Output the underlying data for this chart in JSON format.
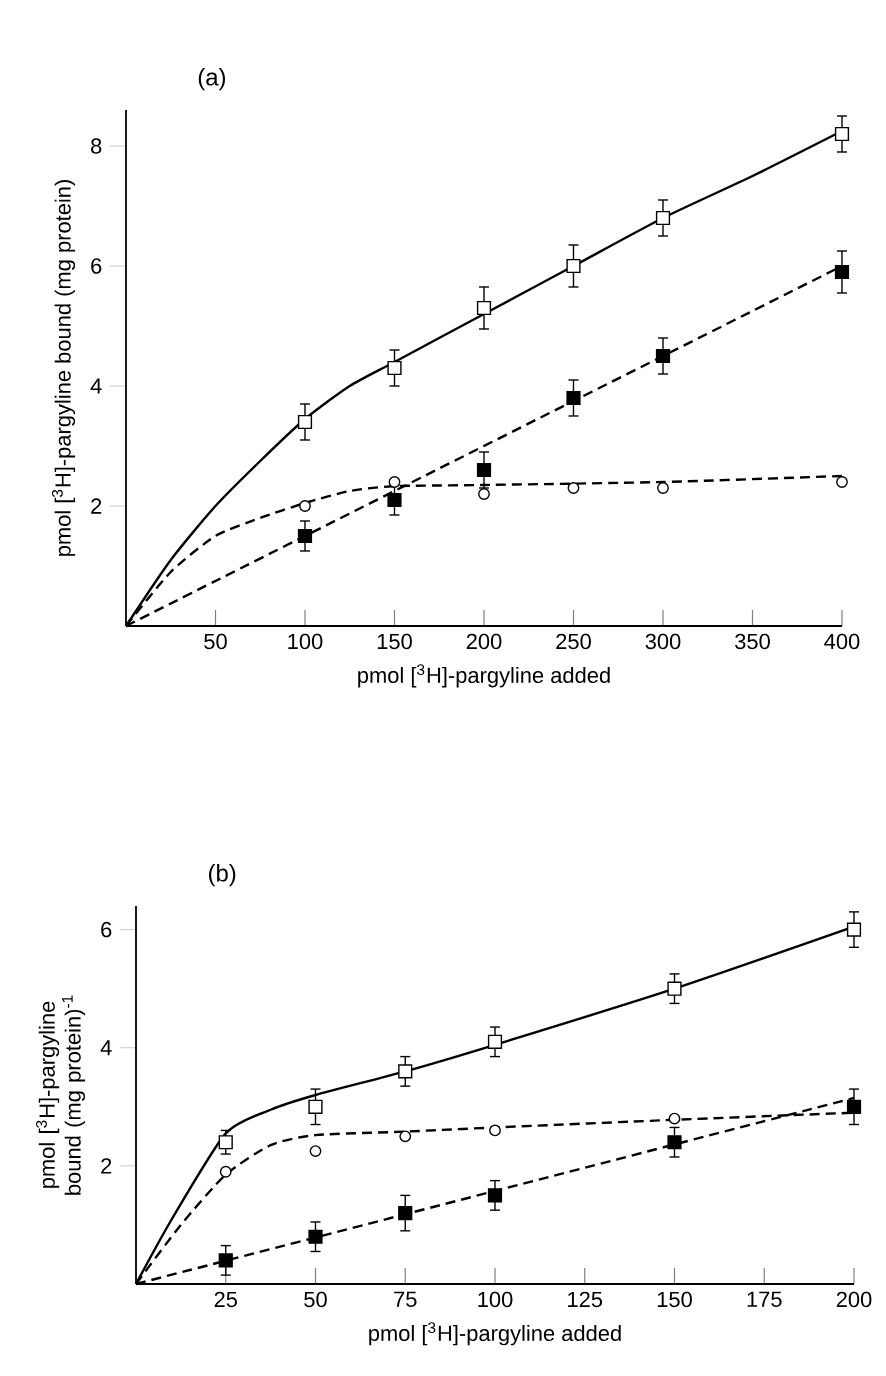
{
  "chart_data": [
    {
      "type": "scatter",
      "title": "(a)",
      "xlabel": "pmol [$^{3}$H]-pargyline added",
      "ylabel": "pmol [$^{3}$H]-pargyline bound (mg protein)",
      "xlim": [
        0,
        400
      ],
      "ylim": [
        0,
        8.6
      ],
      "xticks": [
        50,
        100,
        150,
        200,
        250,
        300,
        350,
        400
      ],
      "yticks": [
        2,
        4,
        6,
        8
      ],
      "series": [
        {
          "marker": "square",
          "color": "#ffffff",
          "x": [
            100,
            150,
            200,
            250,
            300,
            400
          ],
          "values": [
            3.4,
            4.3,
            5.3,
            6.0,
            6.8,
            8.2
          ],
          "errors": [
            0.3,
            0.3,
            0.35,
            0.35,
            0.3,
            0.3
          ]
        },
        {
          "marker": "square",
          "color": "#000000",
          "x": [
            100,
            150,
            200,
            250,
            300,
            400
          ],
          "values": [
            1.5,
            2.1,
            2.6,
            3.8,
            4.5,
            5.9
          ],
          "errors": [
            0.25,
            0.25,
            0.3,
            0.3,
            0.3,
            0.35
          ]
        },
        {
          "marker": "circle",
          "color": "#ffffff",
          "x": [
            100,
            150,
            200,
            250,
            300,
            400
          ],
          "values": [
            2.0,
            2.4,
            2.2,
            2.3,
            2.3,
            2.4
          ]
        },
        {
          "type": "line",
          "line_style": "solid",
          "color": "#000000",
          "x": [
            0,
            25,
            50,
            75,
            100,
            125,
            150,
            200,
            250,
            300,
            350,
            400
          ],
          "values": [
            0,
            1.1,
            2.0,
            2.75,
            3.45,
            4.0,
            4.4,
            5.2,
            6.0,
            6.8,
            7.5,
            8.25
          ]
        },
        {
          "type": "line",
          "line_style": "dashed",
          "color": "#000000",
          "x": [
            0,
            400
          ],
          "values": [
            0,
            6.0
          ]
        },
        {
          "type": "line",
          "line_style": "dashed",
          "color": "#000000",
          "x": [
            0,
            25,
            50,
            75,
            100,
            125,
            150,
            200,
            300,
            400
          ],
          "values": [
            0,
            0.9,
            1.5,
            1.8,
            2.05,
            2.25,
            2.33,
            2.35,
            2.4,
            2.5
          ]
        }
      ]
    },
    {
      "type": "scatter",
      "title": "(b)",
      "xlabel": "pmol [$^{3}$H]-pargyline added",
      "ylabel": "pmol [$^{3}$H]-pargyline bound (mg protein)$^{-1}$",
      "xlim": [
        0,
        200
      ],
      "ylim": [
        0,
        6.4
      ],
      "xticks": [
        25,
        50,
        75,
        100,
        125,
        150,
        175,
        200
      ],
      "yticks": [
        2,
        4,
        6
      ],
      "series": [
        {
          "marker": "square",
          "color": "#ffffff",
          "x": [
            25,
            50,
            75,
            100,
            150,
            200
          ],
          "values": [
            2.4,
            3.0,
            3.6,
            4.1,
            5.0,
            6.0
          ],
          "errors": [
            0.2,
            0.3,
            0.25,
            0.25,
            0.25,
            0.3
          ]
        },
        {
          "marker": "square",
          "color": "#000000",
          "x": [
            25,
            50,
            75,
            100,
            150,
            200
          ],
          "values": [
            0.4,
            0.8,
            1.2,
            1.5,
            2.4,
            3.0
          ],
          "errors": [
            0.25,
            0.25,
            0.3,
            0.25,
            0.25,
            0.3
          ]
        },
        {
          "marker": "circle",
          "color": "#ffffff",
          "x": [
            25,
            50,
            75,
            100,
            150
          ],
          "values": [
            1.9,
            2.25,
            2.5,
            2.6,
            2.8
          ]
        },
        {
          "type": "line",
          "line_style": "solid",
          "color": "#000000",
          "x": [
            0,
            10,
            25,
            37.5,
            50,
            75,
            100,
            150,
            200
          ],
          "values": [
            0,
            1.1,
            2.55,
            2.95,
            3.2,
            3.6,
            4.05,
            5.0,
            6.05
          ]
        },
        {
          "type": "line",
          "line_style": "dashed",
          "color": "#000000",
          "x": [
            0,
            200
          ],
          "values": [
            0,
            3.15
          ]
        },
        {
          "type": "line",
          "line_style": "dashed",
          "color": "#000000",
          "x": [
            0,
            12.5,
            25,
            37.5,
            50,
            75,
            100,
            150,
            200
          ],
          "values": [
            0,
            1.0,
            1.85,
            2.35,
            2.52,
            2.58,
            2.65,
            2.78,
            2.9
          ]
        }
      ]
    }
  ]
}
